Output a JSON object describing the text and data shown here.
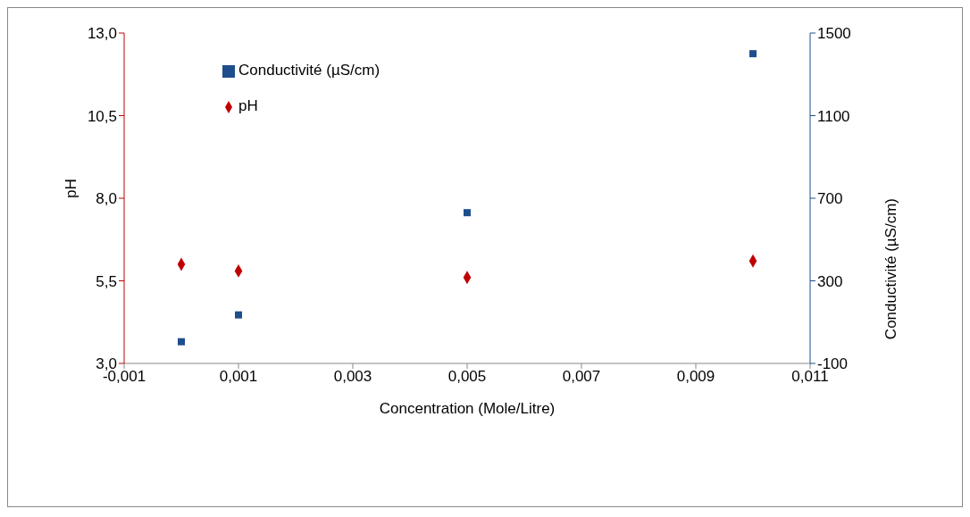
{
  "chart_data": {
    "type": "scatter",
    "xlabel": "Concentration (Mole/Litre)",
    "ylabel": "pH",
    "y2label": "Conductivité (µS/cm)",
    "xlim": [
      -0.001,
      0.011
    ],
    "xticks": [
      {
        "value": -0.001,
        "label": "-0,001"
      },
      {
        "value": 0.001,
        "label": "0,001"
      },
      {
        "value": 0.003,
        "label": "0,003"
      },
      {
        "value": 0.005,
        "label": "0,005"
      },
      {
        "value": 0.007,
        "label": "0,007"
      },
      {
        "value": 0.009,
        "label": "0,009"
      },
      {
        "value": 0.011,
        "label": "0,011"
      }
    ],
    "ylim": [
      3,
      13
    ],
    "yticks": [
      {
        "value": 3,
        "label": "3,0"
      },
      {
        "value": 5.5,
        "label": "5,5"
      },
      {
        "value": 8,
        "label": "8,0"
      },
      {
        "value": 10.5,
        "label": "10,5"
      },
      {
        "value": 13,
        "label": "13,0"
      }
    ],
    "y2lim": [
      -100,
      1500
    ],
    "y2ticks": [
      -100,
      300,
      700,
      1100,
      1500
    ],
    "x": [
      0,
      0.001,
      0.005,
      0.01
    ],
    "series": [
      {
        "name": "pH",
        "color": "#c00000",
        "marker": "diamond",
        "values": [
          6.0,
          5.8,
          5.6,
          6.1
        ]
      },
      {
        "name": "Conductivité (µS/cm)",
        "color": "#1f4e8c",
        "marker": "square",
        "axis": "y2",
        "values": [
          5,
          135,
          630,
          1400
        ]
      }
    ],
    "grid": false,
    "legend": "top left"
  }
}
